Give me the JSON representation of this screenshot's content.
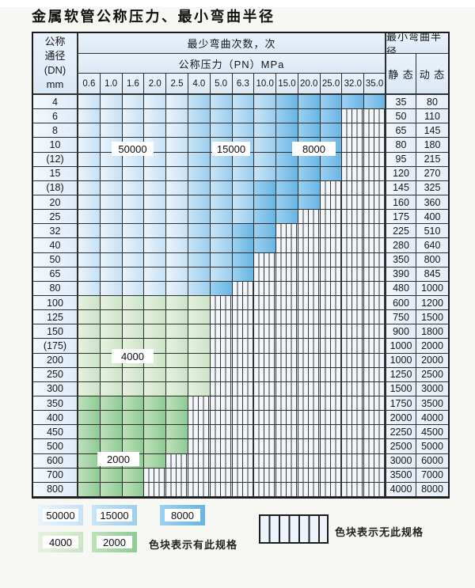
{
  "title": "金属软管公称压力、最小弯曲半径",
  "header": {
    "dn_lines": [
      "公称",
      "通径",
      "(DN)",
      "mm"
    ],
    "cycles_label": "最少弯曲次数，次",
    "pressure_label": "公称压力（PN）MPa",
    "radius_label": "最小弯曲半径",
    "static_label": "静 态",
    "dynamic_label": "动 态"
  },
  "pressures": [
    "0.6",
    "1.0",
    "1.6",
    "2.0",
    "2.5",
    "4.0",
    "5.0",
    "6.3",
    "10.0",
    "15.0",
    "20.0",
    "25.0",
    "32.0",
    "35.0"
  ],
  "cycle_colors": {
    "c50": {
      "label": "50000",
      "light": "#ebf4fb",
      "dark": "#c6e1f5"
    },
    "c15": {
      "label": "15000",
      "light": "#c9e4f6",
      "dark": "#9bceee"
    },
    "c8": {
      "label": "8000",
      "light": "#9dd1f0",
      "dark": "#66b5e4"
    },
    "c4": {
      "label": "4000",
      "light": "#e7f1e1",
      "dark": "#cbe4c6"
    },
    "c2": {
      "label": "2000",
      "light": "#c0e0bb",
      "dark": "#8ecb95"
    }
  },
  "hatch_meaning": "无此规格",
  "rows": [
    {
      "dn": "4",
      "static": "35",
      "dynamic": "80",
      "spans": [
        [
          "c50",
          1,
          5
        ],
        [
          "c15",
          6,
          9
        ],
        [
          "c8",
          10,
          14
        ]
      ]
    },
    {
      "dn": "6",
      "static": "50",
      "dynamic": "110",
      "spans": [
        [
          "c50",
          1,
          5
        ],
        [
          "c15",
          6,
          9
        ],
        [
          "c8",
          10,
          12
        ]
      ]
    },
    {
      "dn": "8",
      "static": "65",
      "dynamic": "145",
      "spans": [
        [
          "c50",
          1,
          5
        ],
        [
          "c15",
          6,
          9
        ],
        [
          "c8",
          10,
          12
        ]
      ]
    },
    {
      "dn": "10",
      "static": "80",
      "dynamic": "180",
      "spans": [
        [
          "c50",
          1,
          5
        ],
        [
          "c15",
          6,
          9
        ],
        [
          "c8",
          10,
          12
        ]
      ]
    },
    {
      "dn": "(12)",
      "static": "95",
      "dynamic": "215",
      "spans": [
        [
          "c50",
          1,
          5
        ],
        [
          "c15",
          6,
          9
        ],
        [
          "c8",
          10,
          12
        ]
      ]
    },
    {
      "dn": "15",
      "static": "120",
      "dynamic": "270",
      "spans": [
        [
          "c50",
          1,
          5
        ],
        [
          "c15",
          6,
          9
        ],
        [
          "c8",
          10,
          12
        ]
      ]
    },
    {
      "dn": "(18)",
      "static": "145",
      "dynamic": "325",
      "spans": [
        [
          "c50",
          1,
          5
        ],
        [
          "c15",
          6,
          8
        ],
        [
          "c8",
          9,
          11
        ]
      ]
    },
    {
      "dn": "20",
      "static": "160",
      "dynamic": "360",
      "spans": [
        [
          "c50",
          1,
          5
        ],
        [
          "c15",
          6,
          8
        ],
        [
          "c8",
          9,
          11
        ]
      ]
    },
    {
      "dn": "25",
      "static": "175",
      "dynamic": "400",
      "spans": [
        [
          "c50",
          1,
          5
        ],
        [
          "c15",
          6,
          8
        ],
        [
          "c8",
          9,
          10
        ]
      ]
    },
    {
      "dn": "32",
      "static": "225",
      "dynamic": "510",
      "spans": [
        [
          "c50",
          1,
          5
        ],
        [
          "c15",
          6,
          7
        ],
        [
          "c8",
          8,
          9
        ]
      ]
    },
    {
      "dn": "40",
      "static": "280",
      "dynamic": "640",
      "spans": [
        [
          "c50",
          1,
          5
        ],
        [
          "c15",
          6,
          7
        ],
        [
          "c8",
          8,
          9
        ]
      ]
    },
    {
      "dn": "50",
      "static": "350",
      "dynamic": "800",
      "spans": [
        [
          "c50",
          1,
          5
        ],
        [
          "c15",
          6,
          7
        ],
        [
          "c8",
          8,
          8
        ]
      ]
    },
    {
      "dn": "65",
      "static": "390",
      "dynamic": "845",
      "spans": [
        [
          "c50",
          1,
          5
        ],
        [
          "c15",
          6,
          7
        ],
        [
          "c8",
          8,
          8
        ]
      ]
    },
    {
      "dn": "80",
      "static": "480",
      "dynamic": "1000",
      "spans": [
        [
          "c50",
          1,
          5
        ],
        [
          "c15",
          6,
          6
        ],
        [
          "c8",
          7,
          7
        ]
      ]
    },
    {
      "dn": "100",
      "static": "600",
      "dynamic": "1200",
      "spans": [
        [
          "c4",
          1,
          6
        ]
      ]
    },
    {
      "dn": "125",
      "static": "750",
      "dynamic": "1500",
      "spans": [
        [
          "c4",
          1,
          6
        ]
      ]
    },
    {
      "dn": "150",
      "static": "900",
      "dynamic": "1800",
      "spans": [
        [
          "c4",
          1,
          6
        ]
      ]
    },
    {
      "dn": "(175)",
      "static": "1000",
      "dynamic": "2000",
      "spans": [
        [
          "c4",
          1,
          6
        ]
      ]
    },
    {
      "dn": "200",
      "static": "1000",
      "dynamic": "2000",
      "spans": [
        [
          "c4",
          1,
          6
        ]
      ]
    },
    {
      "dn": "250",
      "static": "1250",
      "dynamic": "2500",
      "spans": [
        [
          "c4",
          1,
          6
        ]
      ]
    },
    {
      "dn": "300",
      "static": "1500",
      "dynamic": "3000",
      "spans": [
        [
          "c4",
          1,
          6
        ]
      ]
    },
    {
      "dn": "350",
      "static": "1750",
      "dynamic": "3500",
      "spans": [
        [
          "c2",
          1,
          5
        ]
      ]
    },
    {
      "dn": "400",
      "static": "2000",
      "dynamic": "4000",
      "spans": [
        [
          "c2",
          1,
          5
        ]
      ]
    },
    {
      "dn": "450",
      "static": "2250",
      "dynamic": "4500",
      "spans": [
        [
          "c2",
          1,
          5
        ]
      ]
    },
    {
      "dn": "500",
      "static": "2500",
      "dynamic": "5000",
      "spans": [
        [
          "c2",
          1,
          5
        ]
      ]
    },
    {
      "dn": "600",
      "static": "3000",
      "dynamic": "6000",
      "spans": [
        [
          "c2",
          1,
          4
        ]
      ]
    },
    {
      "dn": "700",
      "static": "3500",
      "dynamic": "7000",
      "spans": [
        [
          "c2",
          1,
          3
        ]
      ]
    },
    {
      "dn": "800",
      "static": "4000",
      "dynamic": "8000",
      "spans": [
        [
          "c2",
          1,
          3
        ]
      ]
    }
  ],
  "region_labels": [
    {
      "id": "l50",
      "text": "50000"
    },
    {
      "id": "l15",
      "text": "15000"
    },
    {
      "id": "l8",
      "text": "8000"
    },
    {
      "id": "l4",
      "text": "4000"
    },
    {
      "id": "l2",
      "text": "2000"
    }
  ],
  "legend": {
    "items": [
      {
        "text": "50000",
        "color": "c50"
      },
      {
        "text": "15000",
        "color": "c15"
      },
      {
        "text": "8000",
        "color": "c8"
      },
      {
        "text": "4000",
        "color": "c4"
      },
      {
        "text": "2000",
        "color": "c2"
      }
    ],
    "has_spec_text": "色块表示有此规格",
    "no_spec_text": "色块表示无此规格"
  }
}
